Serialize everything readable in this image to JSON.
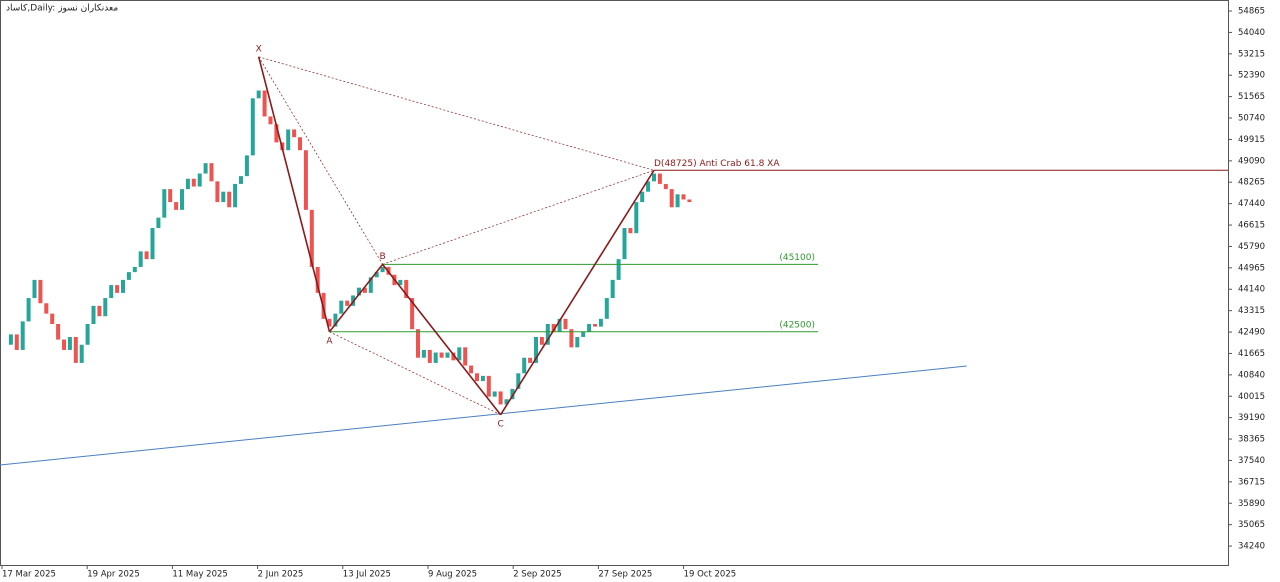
{
  "chart_data": {
    "type": "candlestick",
    "title": "كاساد,Daily: معدنكاران نسوز",
    "up_color": "#26a69a",
    "down_color": "#ef5350",
    "close": [
      42000,
      42400,
      41800,
      42900,
      43800,
      44500,
      43600,
      43200,
      42800,
      42200,
      41800,
      42300,
      41300,
      42000,
      42800,
      43500,
      43100,
      43800,
      44300,
      44000,
      44500,
      44800,
      45000,
      45600,
      45300,
      46500,
      46900,
      48000,
      47500,
      47200,
      48000,
      48400,
      48100,
      48600,
      49000,
      48300,
      47500,
      47900,
      47300,
      48200,
      48500,
      49300,
      51500,
      51800,
      50800,
      50500,
      49800,
      49500,
      50300,
      50000,
      49500,
      47200,
      45000,
      44000,
      43000,
      42700,
      43200,
      43700,
      43500,
      43900,
      44200,
      44000,
      44600,
      44800,
      45000,
      44700,
      44300,
      44500,
      43800,
      42600,
      41500,
      41800,
      41300,
      41700,
      41500,
      41700,
      41400,
      41900,
      41200,
      40900,
      40600,
      40800,
      40000,
      40200,
      39700,
      39900,
      40300,
      40900,
      41500,
      41300,
      42300,
      42000,
      42800,
      42500,
      43000,
      42600,
      41900,
      42300,
      42500,
      42800,
      42700,
      43000,
      43800,
      44500,
      45300,
      46500,
      46300,
      47500,
      47900,
      48300,
      48600,
      48200,
      48000,
      47300,
      47800,
      47600,
      47500
    ],
    "xlabels": [
      "17 Mar 2025",
      "19 Apr 2025",
      "11 May 2025",
      "2 Jun 2025",
      "13 Jul 2025",
      "9 Aug 2025",
      "2 Sep 2025",
      "27 Sep 2025",
      "19 Oct 2025"
    ],
    "ylim": [
      33510,
      55290
    ],
    "yticks": [
      54865,
      54040,
      53215,
      52390,
      51565,
      50740,
      49915,
      49090,
      48265,
      47440,
      46615,
      45790,
      44965,
      44140,
      43315,
      42490,
      41665,
      40840,
      40015,
      39190,
      38365,
      37540,
      36715,
      35890,
      35065,
      34240
    ],
    "pattern": {
      "color": "#8b1a1a",
      "points": [
        {
          "label": "X",
          "index": 43,
          "price": 53100
        },
        {
          "label": "A",
          "index": 55,
          "price": 42500
        },
        {
          "label": "B",
          "index": 64,
          "price": 45100
        },
        {
          "label": "C",
          "index": 84,
          "price": 39300
        },
        {
          "index": 110,
          "price": 48725
        }
      ],
      "annotation": "D(48725) Anti Crab 61.8 XA"
    },
    "levels": [
      {
        "value": 45100,
        "label": "(45100)"
      },
      {
        "value": 42500,
        "label": "(42500)"
      }
    ],
    "level_color": "#2e9a2e",
    "trendline": {
      "x": [
        -0.85,
        163
      ],
      "y": [
        37365,
        41180
      ],
      "color": "#4a7fc1"
    }
  }
}
